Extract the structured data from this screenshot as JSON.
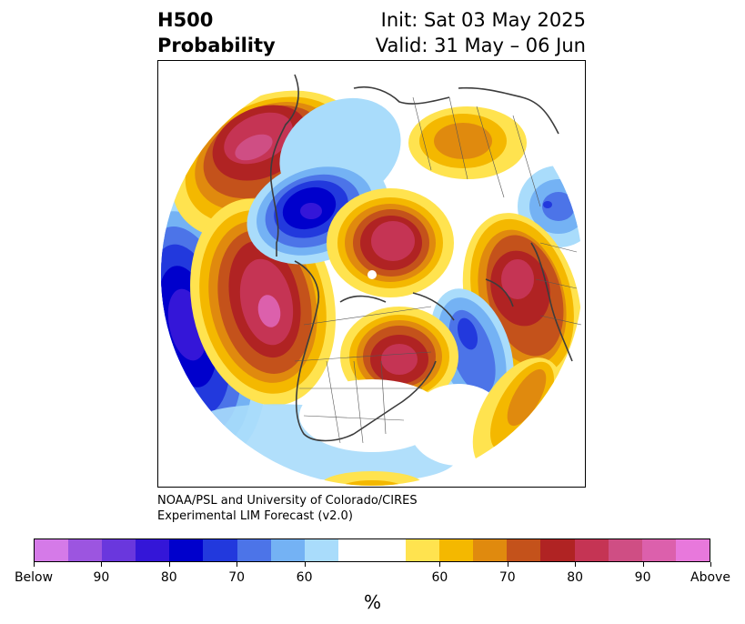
{
  "title": {
    "left_line1": "H500",
    "left_line2": "Probability",
    "right_line1": "Init: Sat 03 May 2025",
    "right_line2": "Valid: 31 May – 06 Jun"
  },
  "credit": {
    "line1": "NOAA/PSL and University of Colorado/CIRES",
    "line2": "Experimental LIM Forecast (v2.0)"
  },
  "colorbar": {
    "unit": "%",
    "tick_labels": [
      "Below",
      "90",
      "80",
      "70",
      "60",
      "60",
      "70",
      "80",
      "90",
      "Above"
    ],
    "colors": [
      "#d57ae8",
      "#9c55e0",
      "#6a37dd",
      "#3416d8",
      "#0000cc",
      "#2239dd",
      "#4c74e8",
      "#74b2f4",
      "#a9dcfb",
      "#ffffff",
      "#ffffff",
      "#ffe34f",
      "#f4b800",
      "#e08a0e",
      "#c4521b",
      "#b02323",
      "#c53454",
      "#cf4e84",
      "#dc60ac",
      "#e878dc"
    ]
  },
  "chart_data": {
    "type": "heatmap",
    "variable": "H500 Probability",
    "init": "Sat 03 May 2025",
    "valid": "31 May – 06 Jun",
    "categories_below": [
      "Below",
      "90",
      "80",
      "70",
      "60"
    ],
    "categories_above": [
      "60",
      "70",
      "80",
      "90",
      "Above"
    ]
  }
}
